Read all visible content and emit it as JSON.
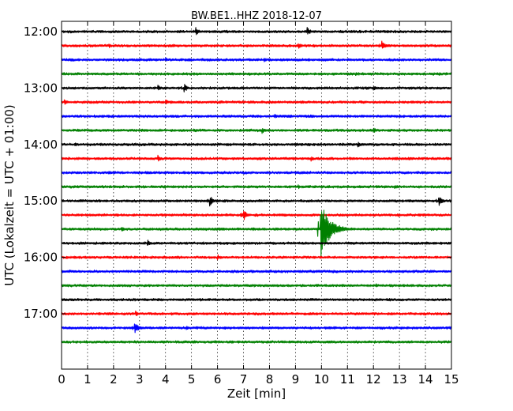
{
  "chart_data": {
    "type": "line",
    "title": "BW.BE1..HHZ 2018-12-07",
    "xlabel": "Zeit  [min]",
    "ylabel": "UTC (Lokalzeit = UTC + 01:00)",
    "xlim": [
      0,
      15
    ],
    "x_ticks": [
      "0",
      "1",
      "2",
      "3",
      "4",
      "5",
      "6",
      "7",
      "8",
      "9",
      "10",
      "11",
      "12",
      "13",
      "14",
      "15"
    ],
    "y_ticks": [
      "12:00",
      "13:00",
      "14:00",
      "15:00",
      "16:00",
      "17:00"
    ],
    "grid": "vertical-dotted",
    "trace_colors": [
      "#000000",
      "#ff0000",
      "#0000ff",
      "#008000"
    ],
    "traces_start": "12:00",
    "trace_interval_min": 15,
    "traces": [
      {
        "start": "12:00",
        "color": "#000000",
        "events": [
          {
            "t": 5.15,
            "amp": 6
          },
          {
            "t": 9.45,
            "amp": 6
          }
        ]
      },
      {
        "start": "12:15",
        "color": "#ff0000",
        "events": [
          {
            "t": 1.8,
            "amp": 4
          },
          {
            "t": 9.1,
            "amp": 5
          },
          {
            "t": 12.3,
            "amp": 8
          }
        ]
      },
      {
        "start": "12:30",
        "color": "#0000ff",
        "events": [
          {
            "t": 4.0,
            "amp": 3
          },
          {
            "t": 7.8,
            "amp": 3
          }
        ]
      },
      {
        "start": "12:45",
        "color": "#008000",
        "events": [
          {
            "t": 11.3,
            "amp": 3
          }
        ]
      },
      {
        "start": "13:00",
        "color": "#000000",
        "events": [
          {
            "t": 3.7,
            "amp": 4
          },
          {
            "t": 4.7,
            "amp": 7
          },
          {
            "t": 12.0,
            "amp": 4
          }
        ]
      },
      {
        "start": "13:15",
        "color": "#ff0000",
        "events": [
          {
            "t": 0.1,
            "amp": 5
          },
          {
            "t": 4.0,
            "amp": 4
          }
        ]
      },
      {
        "start": "13:30",
        "color": "#0000ff",
        "events": [
          {
            "t": 8.2,
            "amp": 3
          }
        ]
      },
      {
        "start": "13:45",
        "color": "#008000",
        "events": [
          {
            "t": 7.7,
            "amp": 5
          },
          {
            "t": 12.0,
            "amp": 4
          }
        ]
      },
      {
        "start": "14:00",
        "color": "#000000",
        "events": [
          {
            "t": 0.5,
            "amp": 3
          },
          {
            "t": 11.4,
            "amp": 4
          }
        ]
      },
      {
        "start": "14:15",
        "color": "#ff0000",
        "events": [
          {
            "t": 3.7,
            "amp": 5
          },
          {
            "t": 9.6,
            "amp": 4
          }
        ]
      },
      {
        "start": "14:30",
        "color": "#0000ff",
        "events": [
          {
            "t": 9.0,
            "amp": 2
          }
        ]
      },
      {
        "start": "14:45",
        "color": "#008000",
        "events": [
          {
            "t": 9.1,
            "amp": 3
          },
          {
            "t": 12.8,
            "amp": 4
          }
        ]
      },
      {
        "start": "15:00",
        "color": "#000000",
        "events": [
          {
            "t": 5.7,
            "amp": 8
          },
          {
            "t": 14.5,
            "amp": 8
          }
        ]
      },
      {
        "start": "15:15",
        "color": "#ff0000",
        "events": [
          {
            "t": 7.0,
            "amp": 8
          }
        ]
      },
      {
        "start": "15:30",
        "color": "#008000",
        "events": [
          {
            "t": 2.3,
            "amp": 4
          },
          {
            "t": 9.95,
            "amp": 38
          }
        ]
      },
      {
        "start": "15:45",
        "color": "#000000",
        "events": [
          {
            "t": 3.3,
            "amp": 5
          }
        ]
      },
      {
        "start": "16:00",
        "color": "#ff0000",
        "events": [
          {
            "t": 6.0,
            "amp": 4
          }
        ]
      },
      {
        "start": "16:15",
        "color": "#0000ff",
        "events": [
          {
            "t": 7.3,
            "amp": 3
          }
        ]
      },
      {
        "start": "16:30",
        "color": "#008000",
        "events": [
          {
            "t": 12.1,
            "amp": 3
          }
        ]
      },
      {
        "start": "16:45",
        "color": "#000000",
        "events": []
      },
      {
        "start": "17:00",
        "color": "#ff0000",
        "events": [
          {
            "t": 2.85,
            "amp": 4
          }
        ]
      },
      {
        "start": "17:15",
        "color": "#0000ff",
        "events": [
          {
            "t": 2.8,
            "amp": 10
          },
          {
            "t": 4.8,
            "amp": 3
          }
        ]
      },
      {
        "start": "17:30",
        "color": "#008000",
        "events": []
      }
    ]
  }
}
